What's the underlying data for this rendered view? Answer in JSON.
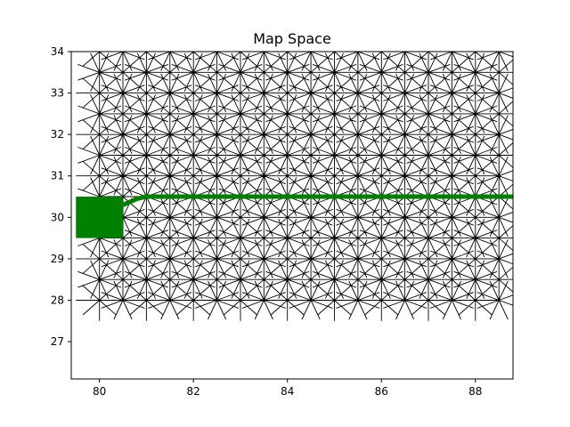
{
  "chart_data": {
    "type": "scatter",
    "title": "Map Space",
    "xlabel": "",
    "ylabel": "",
    "xlim": [
      79.4,
      88.8
    ],
    "ylim": [
      26.1,
      34.0
    ],
    "xticks": [
      80,
      82,
      84,
      86,
      88
    ],
    "yticks": [
      27,
      28,
      29,
      30,
      31,
      32,
      33,
      34
    ],
    "grid": false,
    "legend": "none",
    "colors": {
      "graph_edges": "#000000",
      "path": "#008000"
    },
    "graph": {
      "description_of_marks": "star-shaped line bursts from each node of a half-unit lattice",
      "node_x_range": [
        80,
        88.5
      ],
      "node_y_range": [
        28,
        34
      ],
      "node_step": 0.5,
      "ray_count": 8,
      "ray_length": 1.0
    },
    "start_region": {
      "x": [
        79.5,
        80.5
      ],
      "y": [
        29.5,
        30.5
      ]
    },
    "path": {
      "x": [
        80.5,
        80.8,
        81.0,
        81.5,
        82.0,
        82.5,
        83.0,
        83.5,
        84.0,
        84.5,
        85.0,
        85.5,
        86.0,
        86.5,
        87.0,
        87.5,
        88.0,
        88.5,
        88.8
      ],
      "y": [
        30.3,
        30.45,
        30.5,
        30.5,
        30.5,
        30.5,
        30.5,
        30.5,
        30.5,
        30.5,
        30.5,
        30.5,
        30.5,
        30.5,
        30.5,
        30.5,
        30.5,
        30.5,
        30.5
      ]
    }
  }
}
